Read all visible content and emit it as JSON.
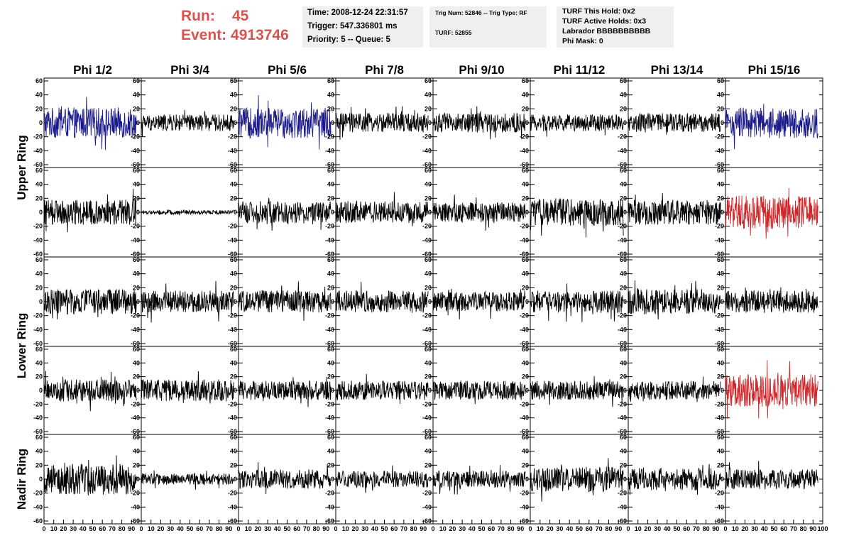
{
  "header": {
    "run_label": "Run:",
    "run_value": "45",
    "event_label": "Event:",
    "event_value": "4913746",
    "time": "Time: 2008-12-24 22:31:57",
    "trigger": "Trigger: 547.336801 ms",
    "priority": "Priority: 5 -- Queue: 5",
    "trig_num": "Trig Num: 52846 -- Trig Type: RF",
    "turf": "TURF: 52855",
    "turf_hold": "TURF This Hold: 0x2",
    "turf_active": "TURF Active Holds: 0x3",
    "labrador": "Labrador BBBBBBBBBB",
    "phi_mask": "Phi Mask: 0"
  },
  "chart_data": {
    "type": "line",
    "title": "",
    "columns": [
      "Phi 1/2",
      "Phi 3/4",
      "Phi 5/6",
      "Phi 7/8",
      "Phi 9/10",
      "Phi 11/12",
      "Phi 13/14",
      "Phi 15/16"
    ],
    "ring_labels": [
      "Upper Ring",
      "Lower Ring",
      "Nadir Ring"
    ],
    "rows": 5,
    "xlim": [
      0,
      100
    ],
    "ylim": [
      -60,
      60
    ],
    "y_ticks": [
      -60,
      -40,
      -20,
      0,
      20,
      40,
      60
    ],
    "x_ticks": [
      0,
      10,
      20,
      30,
      40,
      50,
      60,
      70,
      80,
      90,
      100
    ],
    "trace_x_range": [
      0,
      95
    ],
    "colors": {
      "normal": "#000000",
      "highlight_blue": "#1a1a8c",
      "highlight_red": "#d0262a"
    },
    "panels": [
      {
        "row": 0,
        "col": 0,
        "color": "highlight_blue",
        "amplitude": 22
      },
      {
        "row": 0,
        "col": 1,
        "color": "normal",
        "amplitude": 12
      },
      {
        "row": 0,
        "col": 2,
        "color": "highlight_blue",
        "amplitude": 22
      },
      {
        "row": 0,
        "col": 3,
        "color": "normal",
        "amplitude": 14
      },
      {
        "row": 0,
        "col": 4,
        "color": "normal",
        "amplitude": 14
      },
      {
        "row": 0,
        "col": 5,
        "color": "normal",
        "amplitude": 12
      },
      {
        "row": 0,
        "col": 6,
        "color": "normal",
        "amplitude": 14
      },
      {
        "row": 0,
        "col": 7,
        "color": "highlight_blue",
        "amplitude": 22
      },
      {
        "row": 1,
        "col": 0,
        "color": "normal",
        "amplitude": 18
      },
      {
        "row": 1,
        "col": 1,
        "color": "normal",
        "amplitude": 3
      },
      {
        "row": 1,
        "col": 2,
        "color": "normal",
        "amplitude": 16
      },
      {
        "row": 1,
        "col": 3,
        "color": "normal",
        "amplitude": 16
      },
      {
        "row": 1,
        "col": 4,
        "color": "normal",
        "amplitude": 14
      },
      {
        "row": 1,
        "col": 5,
        "color": "normal",
        "amplitude": 20
      },
      {
        "row": 1,
        "col": 6,
        "color": "normal",
        "amplitude": 18
      },
      {
        "row": 1,
        "col": 7,
        "color": "highlight_red",
        "amplitude": 24
      },
      {
        "row": 2,
        "col": 0,
        "color": "normal",
        "amplitude": 18
      },
      {
        "row": 2,
        "col": 1,
        "color": "normal",
        "amplitude": 16
      },
      {
        "row": 2,
        "col": 2,
        "color": "normal",
        "amplitude": 16
      },
      {
        "row": 2,
        "col": 3,
        "color": "normal",
        "amplitude": 16
      },
      {
        "row": 2,
        "col": 4,
        "color": "normal",
        "amplitude": 14
      },
      {
        "row": 2,
        "col": 5,
        "color": "normal",
        "amplitude": 16
      },
      {
        "row": 2,
        "col": 6,
        "color": "normal",
        "amplitude": 18
      },
      {
        "row": 2,
        "col": 7,
        "color": "normal",
        "amplitude": 16
      },
      {
        "row": 3,
        "col": 0,
        "color": "normal",
        "amplitude": 16
      },
      {
        "row": 3,
        "col": 1,
        "color": "normal",
        "amplitude": 16
      },
      {
        "row": 3,
        "col": 2,
        "color": "normal",
        "amplitude": 14
      },
      {
        "row": 3,
        "col": 3,
        "color": "normal",
        "amplitude": 14
      },
      {
        "row": 3,
        "col": 4,
        "color": "normal",
        "amplitude": 14
      },
      {
        "row": 3,
        "col": 5,
        "color": "normal",
        "amplitude": 14
      },
      {
        "row": 3,
        "col": 6,
        "color": "normal",
        "amplitude": 14
      },
      {
        "row": 3,
        "col": 7,
        "color": "highlight_red",
        "amplitude": 24
      },
      {
        "row": 4,
        "col": 0,
        "color": "normal",
        "amplitude": 22
      },
      {
        "row": 4,
        "col": 1,
        "color": "normal",
        "amplitude": 8
      },
      {
        "row": 4,
        "col": 2,
        "color": "normal",
        "amplitude": 14
      },
      {
        "row": 4,
        "col": 3,
        "color": "normal",
        "amplitude": 12
      },
      {
        "row": 4,
        "col": 4,
        "color": "normal",
        "amplitude": 12
      },
      {
        "row": 4,
        "col": 5,
        "color": "normal",
        "amplitude": 18
      },
      {
        "row": 4,
        "col": 6,
        "color": "normal",
        "amplitude": 16
      },
      {
        "row": 4,
        "col": 7,
        "color": "normal",
        "amplitude": 14
      }
    ]
  }
}
